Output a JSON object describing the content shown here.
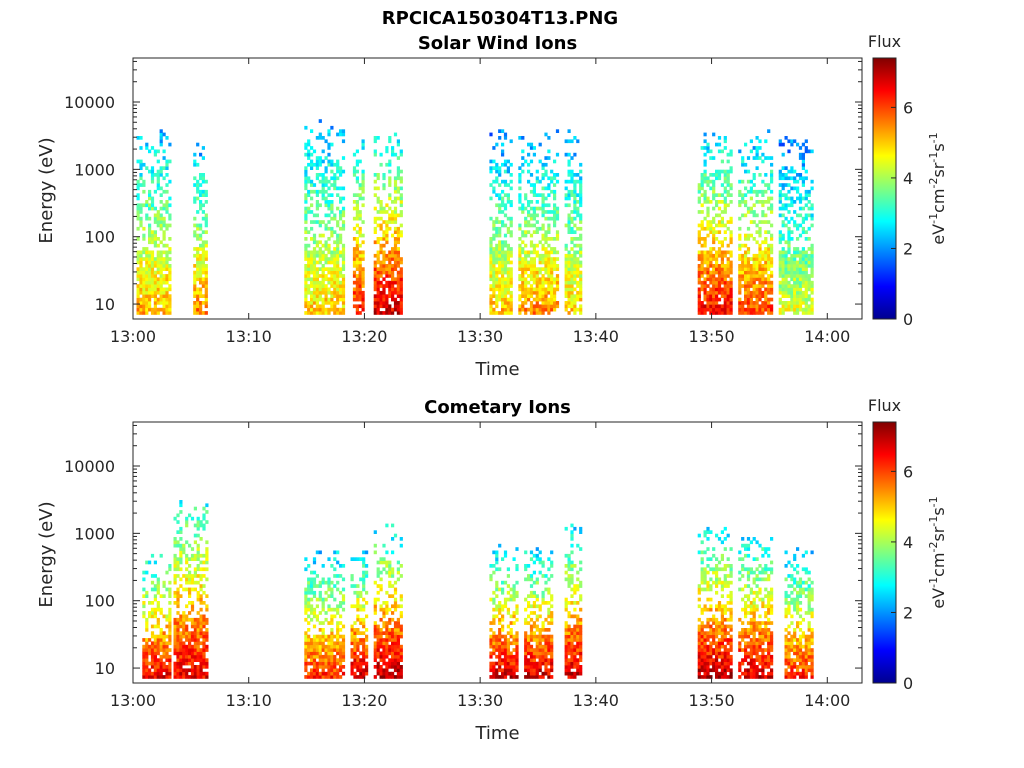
{
  "figure_title": "RPCICA150304T13.PNG",
  "chart_data": [
    {
      "type": "heatmap",
      "title": "Solar Wind Ions",
      "xlabel": "Time",
      "ylabel": "Energy (eV)",
      "x_ticks": [
        "13:00",
        "13:10",
        "13:20",
        "13:30",
        "13:40",
        "13:50",
        "14:00"
      ],
      "xlim_minutes": [
        0,
        63
      ],
      "y_ticks": [
        "10",
        "100",
        "1000",
        "10000"
      ],
      "yscale": "log",
      "ylim": [
        6,
        45000
      ],
      "colorbar": {
        "title": "Flux",
        "label": "eV-1cm-2sr-1s-1",
        "ticks": [
          "0",
          "2",
          "4",
          "6"
        ],
        "range": [
          0,
          7.4
        ],
        "colormap": "jet"
      },
      "bursts": [
        {
          "t_start": 0.3,
          "t_end": 3.3,
          "low_flux": 5.2,
          "high_flux": 2.3,
          "max_energy": 3500
        },
        {
          "t_start": 5.2,
          "t_end": 6.3,
          "low_flux": 5.6,
          "high_flux": 2.0,
          "max_energy": 2500
        },
        {
          "t_start": 14.8,
          "t_end": 18.3,
          "low_flux": 5.0,
          "high_flux": 2.2,
          "max_energy": 4000
        },
        {
          "t_start": 19.0,
          "t_end": 19.8,
          "low_flux": 6.3,
          "high_flux": 2.4,
          "max_energy": 3000
        },
        {
          "t_start": 20.8,
          "t_end": 23.3,
          "low_flux": 6.8,
          "high_flux": 2.6,
          "max_energy": 3000
        },
        {
          "t_start": 30.8,
          "t_end": 32.8,
          "low_flux": 5.1,
          "high_flux": 1.8,
          "max_energy": 4000
        },
        {
          "t_start": 33.3,
          "t_end": 36.8,
          "low_flux": 5.5,
          "high_flux": 2.0,
          "max_energy": 3000
        },
        {
          "t_start": 37.3,
          "t_end": 38.8,
          "low_flux": 5.0,
          "high_flux": 2.0,
          "max_energy": 3000
        },
        {
          "t_start": 48.8,
          "t_end": 51.8,
          "low_flux": 6.5,
          "high_flux": 2.4,
          "max_energy": 3000
        },
        {
          "t_start": 52.3,
          "t_end": 55.3,
          "low_flux": 6.0,
          "high_flux": 2.2,
          "max_energy": 3000
        },
        {
          "t_start": 55.8,
          "t_end": 58.8,
          "low_flux": 4.4,
          "high_flux": 1.8,
          "max_energy": 3000
        }
      ]
    },
    {
      "type": "heatmap",
      "title": "Cometary Ions",
      "xlabel": "Time",
      "ylabel": "Energy (eV)",
      "x_ticks": [
        "13:00",
        "13:10",
        "13:20",
        "13:30",
        "13:40",
        "13:50",
        "14:00"
      ],
      "xlim_minutes": [
        0,
        63
      ],
      "y_ticks": [
        "10",
        "100",
        "1000",
        "10000"
      ],
      "yscale": "log",
      "ylim": [
        6,
        45000
      ],
      "colorbar": {
        "title": "Flux",
        "label": "eV-1cm-2sr-1s-1",
        "ticks": [
          "0",
          "2",
          "4",
          "6"
        ],
        "range": [
          0,
          7.4
        ],
        "colormap": "jet"
      },
      "bursts": [
        {
          "t_start": 0.8,
          "t_end": 3.3,
          "low_flux": 6.6,
          "high_flux": 2.8,
          "max_energy": 400
        },
        {
          "t_start": 3.5,
          "t_end": 6.3,
          "low_flux": 6.6,
          "high_flux": 3.0,
          "max_energy": 2500
        },
        {
          "t_start": 14.8,
          "t_end": 18.3,
          "low_flux": 6.2,
          "high_flux": 2.4,
          "max_energy": 500
        },
        {
          "t_start": 18.8,
          "t_end": 20.3,
          "low_flux": 6.8,
          "high_flux": 2.6,
          "max_energy": 500
        },
        {
          "t_start": 20.8,
          "t_end": 23.3,
          "low_flux": 7.0,
          "high_flux": 2.8,
          "max_energy": 1000
        },
        {
          "t_start": 30.8,
          "t_end": 33.3,
          "low_flux": 6.8,
          "high_flux": 2.6,
          "max_energy": 500
        },
        {
          "t_start": 33.8,
          "t_end": 36.3,
          "low_flux": 6.8,
          "high_flux": 2.6,
          "max_energy": 500
        },
        {
          "t_start": 37.3,
          "t_end": 38.8,
          "low_flux": 6.8,
          "high_flux": 2.6,
          "max_energy": 1200
        },
        {
          "t_start": 48.8,
          "t_end": 51.8,
          "low_flux": 7.0,
          "high_flux": 2.6,
          "max_energy": 1200
        },
        {
          "t_start": 52.3,
          "t_end": 55.3,
          "low_flux": 6.8,
          "high_flux": 2.6,
          "max_energy": 800
        },
        {
          "t_start": 56.3,
          "t_end": 58.8,
          "low_flux": 6.2,
          "high_flux": 2.4,
          "max_energy": 500
        }
      ]
    }
  ]
}
